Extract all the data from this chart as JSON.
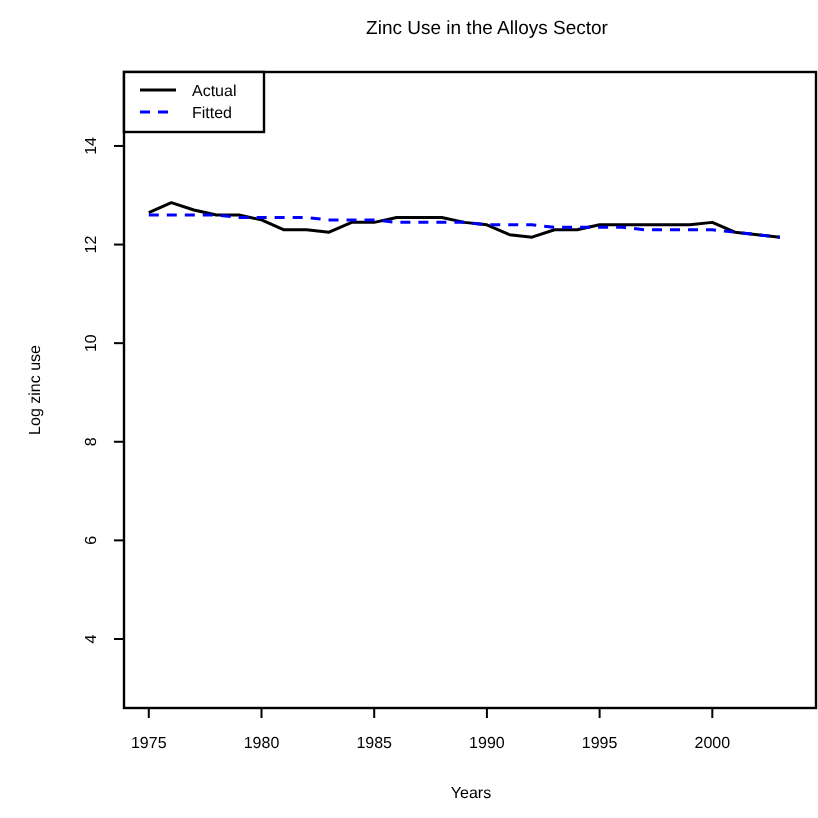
{
  "chart_data": {
    "type": "line",
    "title": "Zinc Use in the Alloys Sector",
    "xlabel": "Years",
    "ylabel": "Log zinc use",
    "x": [
      1975,
      1976,
      1977,
      1978,
      1979,
      1980,
      1981,
      1982,
      1983,
      1984,
      1985,
      1986,
      1987,
      1988,
      1989,
      1990,
      1991,
      1992,
      1993,
      1994,
      1995,
      1996,
      1997,
      1998,
      1999,
      2000,
      2001,
      2002,
      2003
    ],
    "series": [
      {
        "name": "Actual",
        "color": "#000000",
        "line_style": "solid",
        "values": [
          12.65,
          12.85,
          12.7,
          12.6,
          12.6,
          12.5,
          12.3,
          12.3,
          12.25,
          12.45,
          12.45,
          12.55,
          12.55,
          12.55,
          12.45,
          12.4,
          12.2,
          12.15,
          12.3,
          12.3,
          12.4,
          12.4,
          12.4,
          12.4,
          12.4,
          12.45,
          12.25,
          12.2,
          12.15
        ]
      },
      {
        "name": "Fitted",
        "color": "#0000ff",
        "line_style": "dashed",
        "values": [
          12.6,
          12.6,
          12.6,
          12.6,
          12.55,
          12.55,
          12.55,
          12.55,
          12.5,
          12.5,
          12.5,
          12.45,
          12.45,
          12.45,
          12.45,
          12.4,
          12.4,
          12.4,
          12.35,
          12.35,
          12.35,
          12.35,
          12.3,
          12.3,
          12.3,
          12.3,
          12.25,
          12.2,
          12.15
        ]
      }
    ],
    "xlim": [
      1973.9,
      2004.6
    ],
    "xticks": [
      1975,
      1980,
      1985,
      1990,
      1995,
      2000
    ],
    "ylim": [
      2.6,
      15.5
    ],
    "yticks": [
      4,
      6,
      8,
      10,
      12,
      14
    ],
    "grid": false,
    "legend": "top left"
  }
}
